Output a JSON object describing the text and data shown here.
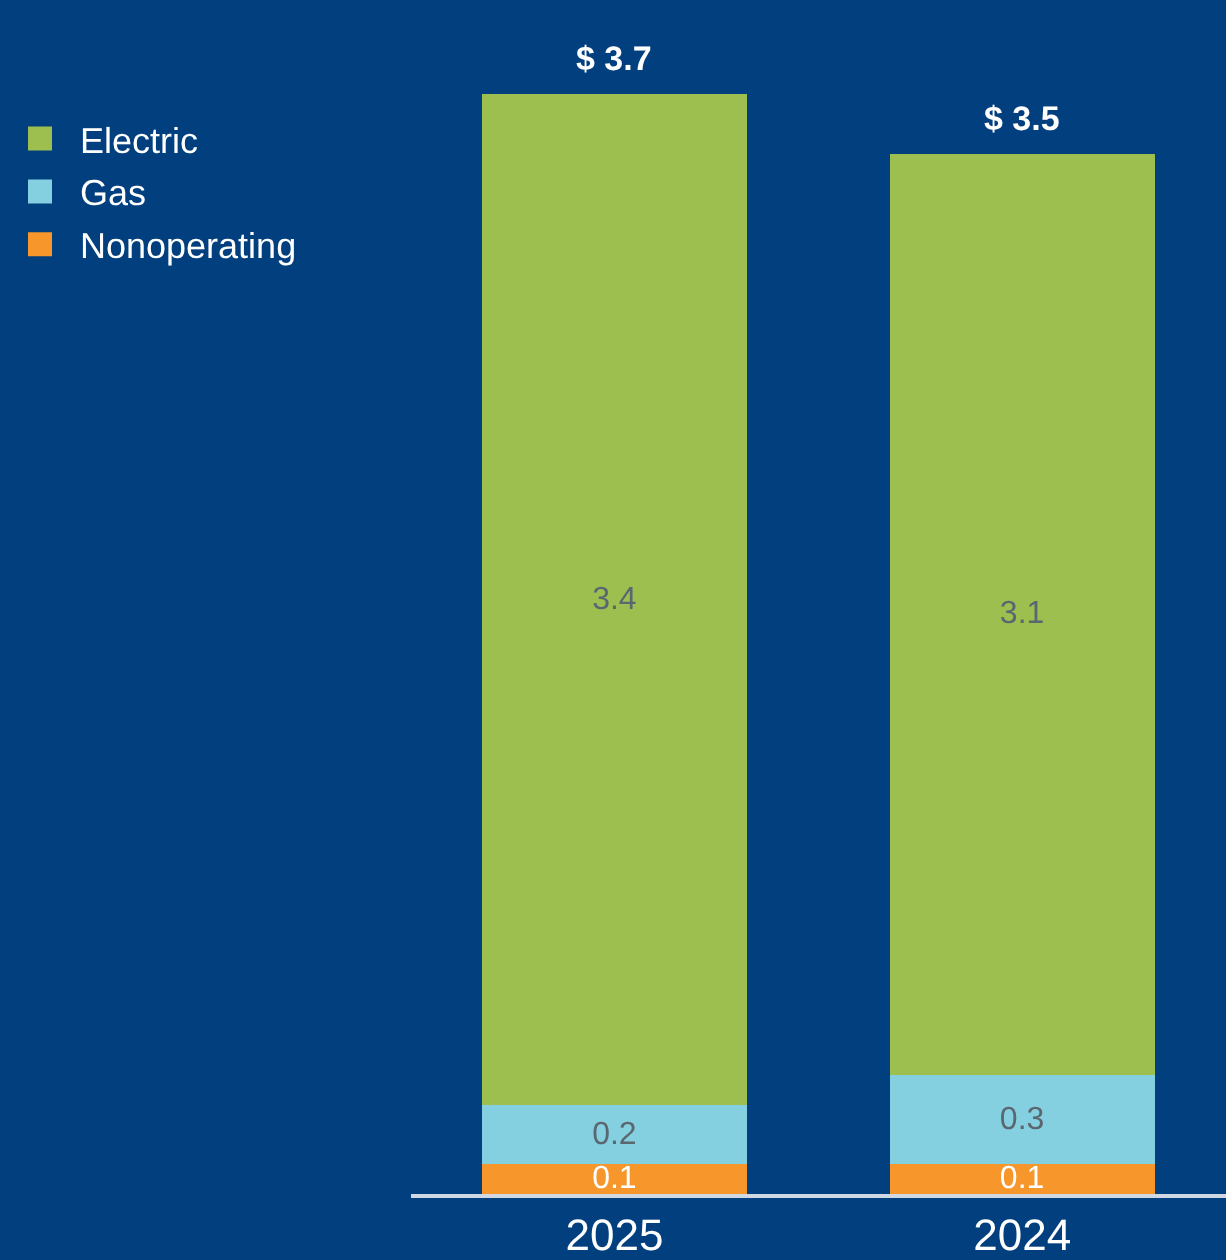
{
  "chart_data": {
    "type": "bar",
    "stacked": true,
    "categories": [
      "2025",
      "2024"
    ],
    "series": [
      {
        "name": "Nonoperating",
        "color": "#f7962a",
        "values": [
          0.1,
          0.1
        ]
      },
      {
        "name": "Gas",
        "color": "#85d0e0",
        "values": [
          0.2,
          0.3
        ]
      },
      {
        "name": "Electric",
        "color": "#9dbf4f",
        "values": [
          3.4,
          3.1
        ]
      }
    ],
    "data_labels": true,
    "totals": [
      "$ 3.7",
      "$ 3.5"
    ],
    "legend": "top left"
  }
}
